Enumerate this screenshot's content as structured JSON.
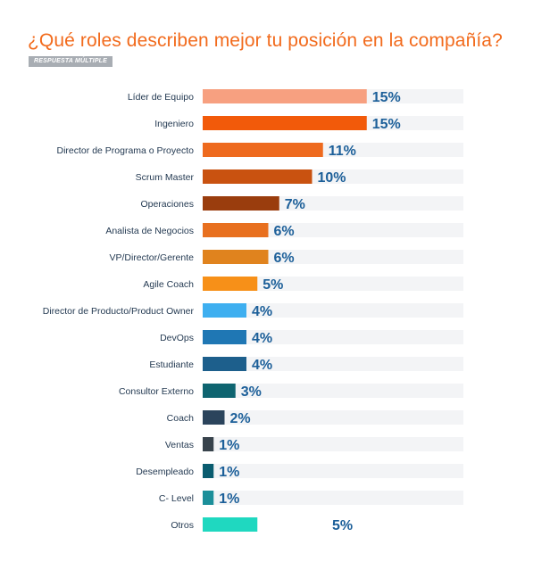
{
  "header": {
    "title": "¿Qué roles describen mejor tu posición en la compañía?",
    "badge": "RESPUESTA MÚLTIPLE"
  },
  "chart_data": {
    "type": "bar",
    "orientation": "horizontal",
    "title": "¿Qué roles describen mejor tu posición en la compañía?",
    "xlabel": "",
    "ylabel": "",
    "xlim": [
      0,
      20
    ],
    "value_suffix": "%",
    "grid": false,
    "categories": [
      "Líder de Equipo",
      "Ingeniero",
      "Director de Programa o Proyecto",
      "Scrum Master",
      "Operaciones",
      "Analista de Negocios",
      "VP/Director/Gerente",
      "Agile Coach",
      "Director de Producto/Product Owner",
      "DevOps",
      "Estudiante",
      "Consultor Externo",
      "Coach",
      "Ventas",
      "Desempleado",
      "C- Level",
      "Otros"
    ],
    "values": [
      15,
      15,
      11,
      10,
      7,
      6,
      6,
      5,
      4,
      4,
      4,
      3,
      2,
      1,
      1,
      1,
      5
    ],
    "value_labels": [
      "15%",
      "15%",
      "11%",
      "10%",
      "7%",
      "6%",
      "6%",
      "5%",
      "4%",
      "4%",
      "4%",
      "3%",
      "2%",
      "1%",
      "1%",
      "1%",
      "5%"
    ],
    "colors": [
      "#f7a080",
      "#f25a0a",
      "#ee6a1e",
      "#c95210",
      "#9a3d0d",
      "#e8701f",
      "#e0831e",
      "#f79018",
      "#3eaff0",
      "#1f77b4",
      "#1d5f8c",
      "#0e6470",
      "#2b445c",
      "#38434c",
      "#0a5c6f",
      "#1c8f9a",
      "#1fd8c0"
    ],
    "track_color": "#f3f4f6",
    "last_bar_has_track": false
  }
}
